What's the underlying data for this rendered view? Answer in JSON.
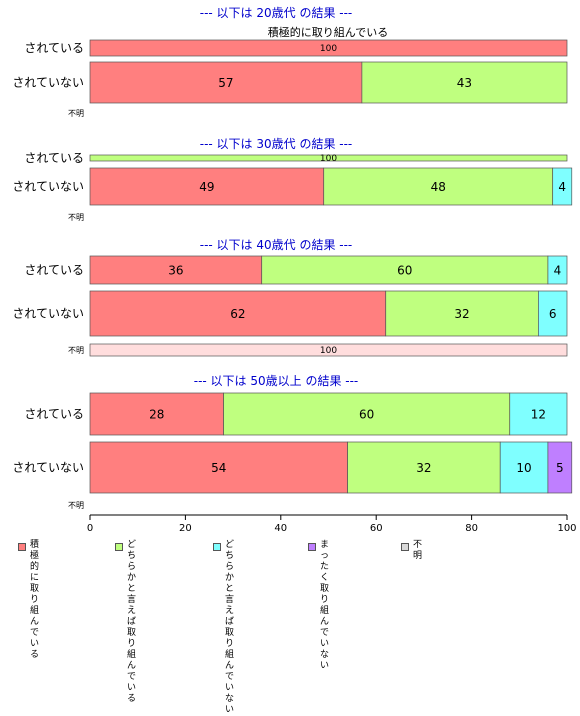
{
  "chart_data": {
    "type": "bar",
    "orientation": "horizontal",
    "stacked": true,
    "xlim": [
      0,
      100
    ],
    "xticks": [
      0,
      20,
      40,
      60,
      80,
      100
    ],
    "legend_position": "bottom",
    "categories_legend": [
      {
        "label": "積極的に\n取り組んでいる",
        "color": "#FF7F7F"
      },
      {
        "label": "どちらかと言えば\n取り組んでいる",
        "color": "#BFFF7F"
      },
      {
        "label": "どちらかと言えば\n取り組んでいない",
        "color": "#7FFFFF"
      },
      {
        "label": "まったく\n取り組んでいない",
        "color": "#BF7FFF"
      },
      {
        "label": "不明",
        "color": "#D9D9D9"
      }
    ],
    "groups": [
      {
        "title": "--- 以下は 20歳代 の結果 ---",
        "annotation": "積極的に取り組んでいる",
        "rows": [
          {
            "label": "されている",
            "values": [
              100,
              0,
              0,
              0,
              0
            ]
          },
          {
            "label": "されていない",
            "values": [
              57,
              43,
              0,
              0,
              0
            ]
          },
          {
            "label": "不明",
            "values": [
              0,
              0,
              0,
              0,
              0
            ]
          }
        ]
      },
      {
        "title": "--- 以下は 30歳代 の結果 ---",
        "annotation": "",
        "rows": [
          {
            "label": "されている",
            "values": [
              0,
              100,
              0,
              0,
              0
            ]
          },
          {
            "label": "されていない",
            "values": [
              49,
              48,
              4,
              0,
              0
            ]
          },
          {
            "label": "不明",
            "values": [
              0,
              0,
              0,
              0,
              0
            ]
          }
        ]
      },
      {
        "title": "--- 以下は 40歳代 の結果 ---",
        "annotation": "",
        "rows": [
          {
            "label": "されている",
            "values": [
              36,
              60,
              4,
              0,
              0
            ]
          },
          {
            "label": "されていない",
            "values": [
              62,
              32,
              6,
              0,
              0
            ]
          },
          {
            "label": "不明",
            "values": [
              100,
              0,
              0,
              0,
              0
            ]
          }
        ]
      },
      {
        "title": "--- 以下は 50歳以上 の結果 ---",
        "annotation": "",
        "rows": [
          {
            "label": "されている",
            "values": [
              28,
              60,
              12,
              0,
              0
            ]
          },
          {
            "label": "されていない",
            "values": [
              54,
              32,
              10,
              5,
              0
            ]
          },
          {
            "label": "不明",
            "values": [
              0,
              0,
              0,
              0,
              0
            ]
          }
        ]
      }
    ]
  }
}
